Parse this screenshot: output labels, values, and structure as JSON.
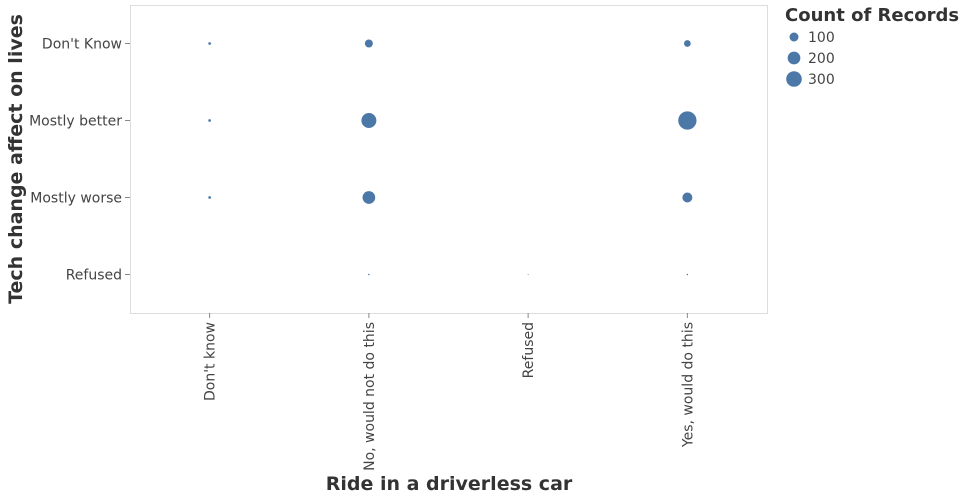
{
  "chart_data": {
    "type": "scatter",
    "xlabel": "Ride in a driverless car",
    "ylabel": "Tech change affect on lives",
    "x_categories": [
      "Don't know",
      "No, would not do this",
      "Refused",
      "Yes, would do this"
    ],
    "y_categories": [
      "Don't Know",
      "Mostly better",
      "Mostly worse",
      "Refused"
    ],
    "size_legend": {
      "title": "Count of Records",
      "values": [
        100,
        200,
        300
      ]
    },
    "color": "#4c78a8",
    "grid": false,
    "legend_position": "top-right",
    "points": [
      {
        "x": "Don't know",
        "y": "Don't Know",
        "count": 9
      },
      {
        "x": "Don't know",
        "y": "Mostly better",
        "count": 9
      },
      {
        "x": "Don't know",
        "y": "Mostly worse",
        "count": 9
      },
      {
        "x": "No, would not do this",
        "y": "Don't Know",
        "count": 79
      },
      {
        "x": "No, would not do this",
        "y": "Mostly better",
        "count": 278
      },
      {
        "x": "No, would not do this",
        "y": "Mostly worse",
        "count": 198
      },
      {
        "x": "No, would not do this",
        "y": "Refused",
        "count": 3
      },
      {
        "x": "Refused",
        "y": "Refused",
        "count": 1
      },
      {
        "x": "Yes, would do this",
        "y": "Don't Know",
        "count": 55
      },
      {
        "x": "Yes, would do this",
        "y": "Mostly better",
        "count": 414
      },
      {
        "x": "Yes, would do this",
        "y": "Mostly worse",
        "count": 123
      },
      {
        "x": "Yes, would do this",
        "y": "Refused",
        "count": 3
      }
    ]
  }
}
